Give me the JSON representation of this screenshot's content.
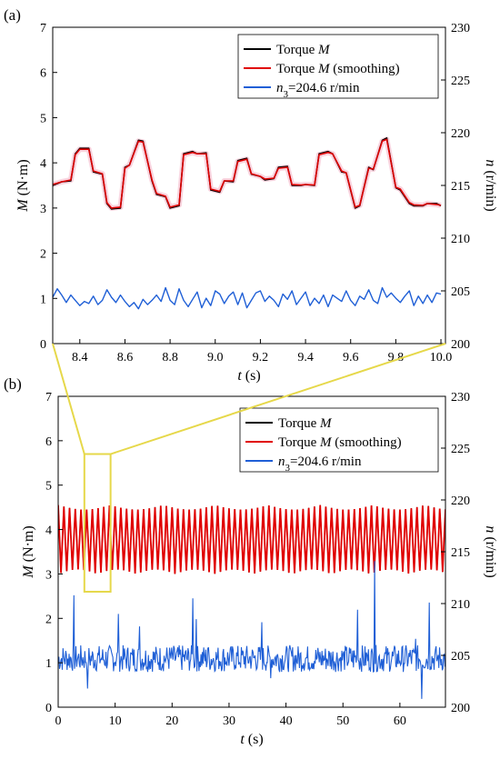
{
  "chart_data": [
    {
      "panel_label": "(a)",
      "type": "line",
      "xlabel_italic": "t",
      "xlabel_unit": "(s)",
      "ylabel_italic": "M",
      "ylabel_unit": "(N·m)",
      "y2label_italic": "n",
      "y2label_unit": "(r/min)",
      "xlim": [
        8.28,
        10.02
      ],
      "ylim": [
        0,
        7
      ],
      "y2lim": [
        200,
        230
      ],
      "x_ticks": [
        "8.4",
        "8.6",
        "8.8",
        "9.0",
        "9.2",
        "9.4",
        "9.6",
        "9.8",
        "10.0"
      ],
      "y_ticks": [
        "0",
        "1",
        "2",
        "3",
        "4",
        "5",
        "6",
        "7"
      ],
      "y2_ticks": [
        "200",
        "205",
        "210",
        "215",
        "220",
        "225",
        "230"
      ],
      "legend": {
        "placement": "top-right",
        "entries": [
          {
            "text": "Torque ",
            "italic": "M",
            "rest": "",
            "color": "#000000"
          },
          {
            "text": "Torque ",
            "italic": "M",
            "rest": " (smoothing)",
            "color": "#e00000"
          },
          {
            "text": "",
            "italic": "n",
            "sub": "3",
            "rest": "=204.6 r/min",
            "color": "#1f5fd6"
          }
        ]
      },
      "series": [
        {
          "name": "Torque M",
          "color": "#000000",
          "x": [
            8.28,
            8.32,
            8.36,
            8.38,
            8.4,
            8.44,
            8.46,
            8.5,
            8.52,
            8.54,
            8.58,
            8.6,
            8.62,
            8.66,
            8.68,
            8.72,
            8.74,
            8.78,
            8.8,
            8.84,
            8.86,
            8.9,
            8.92,
            8.96,
            8.98,
            9.02,
            9.04,
            9.08,
            9.1,
            9.14,
            9.16,
            9.2,
            9.22,
            9.26,
            9.28,
            9.32,
            9.34,
            9.38,
            9.4,
            9.44,
            9.46,
            9.5,
            9.52,
            9.56,
            9.58,
            9.62,
            9.64,
            9.68,
            9.7,
            9.74,
            9.76,
            9.8,
            9.82,
            9.86,
            9.88,
            9.92,
            9.94,
            9.98,
            10.0
          ],
          "y": [
            3.5,
            3.58,
            3.6,
            4.2,
            4.32,
            4.32,
            3.8,
            3.75,
            3.1,
            2.98,
            3.0,
            3.9,
            3.95,
            4.5,
            4.48,
            3.6,
            3.3,
            3.25,
            3.0,
            3.05,
            4.2,
            4.25,
            4.2,
            4.22,
            3.4,
            3.35,
            3.6,
            3.58,
            4.05,
            4.1,
            3.75,
            3.7,
            3.62,
            3.65,
            3.9,
            3.92,
            3.5,
            3.5,
            3.52,
            3.5,
            4.2,
            4.25,
            4.2,
            3.8,
            3.78,
            3.0,
            3.05,
            3.9,
            3.85,
            4.5,
            4.55,
            3.45,
            3.4,
            3.1,
            3.05,
            3.05,
            3.1,
            3.1,
            3.05
          ]
        },
        {
          "name": "Torque M (smoothing)",
          "color": "#e00000",
          "x": [
            8.28,
            8.32,
            8.36,
            8.38,
            8.4,
            8.44,
            8.46,
            8.5,
            8.52,
            8.54,
            8.58,
            8.6,
            8.62,
            8.66,
            8.68,
            8.72,
            8.74,
            8.78,
            8.8,
            8.84,
            8.86,
            8.9,
            8.92,
            8.96,
            8.98,
            9.02,
            9.04,
            9.08,
            9.1,
            9.14,
            9.16,
            9.2,
            9.22,
            9.26,
            9.28,
            9.32,
            9.34,
            9.38,
            9.4,
            9.44,
            9.46,
            9.5,
            9.52,
            9.56,
            9.58,
            9.62,
            9.64,
            9.68,
            9.7,
            9.74,
            9.76,
            9.8,
            9.82,
            9.86,
            9.88,
            9.92,
            9.94,
            9.98,
            10.0
          ],
          "y": [
            3.52,
            3.58,
            3.62,
            4.18,
            4.3,
            4.3,
            3.82,
            3.76,
            3.12,
            3.0,
            3.02,
            3.88,
            3.95,
            4.48,
            4.46,
            3.62,
            3.32,
            3.26,
            3.02,
            3.07,
            4.18,
            4.23,
            4.2,
            4.2,
            3.42,
            3.37,
            3.6,
            3.6,
            4.03,
            4.08,
            3.76,
            3.7,
            3.64,
            3.66,
            3.88,
            3.9,
            3.52,
            3.51,
            3.52,
            3.51,
            4.18,
            4.23,
            4.2,
            3.82,
            3.78,
            3.02,
            3.06,
            3.88,
            3.86,
            4.48,
            4.52,
            3.46,
            3.42,
            3.12,
            3.07,
            3.06,
            3.1,
            3.08,
            3.06
          ]
        },
        {
          "name": "n3=204.6 r/min",
          "axis": "right",
          "color": "#1f5fd6",
          "x": [
            8.28,
            8.3,
            8.32,
            8.34,
            8.36,
            8.38,
            8.4,
            8.42,
            8.44,
            8.46,
            8.48,
            8.5,
            8.52,
            8.54,
            8.56,
            8.58,
            8.6,
            8.62,
            8.64,
            8.66,
            8.68,
            8.7,
            8.72,
            8.74,
            8.76,
            8.78,
            8.8,
            8.82,
            8.84,
            8.86,
            8.88,
            8.9,
            8.92,
            8.94,
            8.96,
            8.98,
            9.0,
            9.02,
            9.04,
            9.06,
            9.08,
            9.1,
            9.12,
            9.14,
            9.16,
            9.18,
            9.2,
            9.22,
            9.24,
            9.26,
            9.28,
            9.3,
            9.32,
            9.34,
            9.36,
            9.38,
            9.4,
            9.42,
            9.44,
            9.46,
            9.48,
            9.5,
            9.52,
            9.54,
            9.56,
            9.58,
            9.6,
            9.62,
            9.64,
            9.66,
            9.68,
            9.7,
            9.72,
            9.74,
            9.76,
            9.78,
            9.8,
            9.82,
            9.84,
            9.86,
            9.88,
            9.9,
            9.92,
            9.94,
            9.96,
            9.98,
            10.0
          ],
          "y": [
            204.4,
            205.2,
            204.6,
            203.9,
            204.6,
            204.1,
            203.6,
            204.0,
            203.8,
            204.5,
            203.7,
            204.1,
            205.1,
            204.4,
            203.9,
            204.6,
            204.0,
            203.5,
            203.9,
            203.3,
            204.2,
            203.7,
            204.1,
            204.6,
            204.0,
            205.3,
            204.1,
            203.7,
            205.2,
            204.1,
            203.5,
            204.2,
            204.9,
            203.4,
            204.3,
            203.6,
            205.0,
            204.7,
            203.8,
            204.5,
            204.9,
            203.7,
            204.8,
            203.4,
            204.1,
            204.8,
            205.0,
            204.0,
            204.5,
            204.1,
            203.5,
            204.7,
            204.2,
            205.0,
            203.7,
            204.3,
            204.9,
            203.6,
            204.3,
            203.8,
            204.6,
            203.5,
            204.6,
            204.3,
            204.0,
            205.0,
            204.1,
            203.6,
            204.5,
            204.2,
            205.1,
            204.1,
            203.8,
            205.3,
            204.4,
            204.8,
            204.3,
            203.9,
            204.5,
            205.0,
            203.6,
            204.5,
            203.8,
            204.6,
            203.9,
            204.8,
            204.7
          ]
        }
      ]
    },
    {
      "panel_label": "(b)",
      "type": "line",
      "xlabel_italic": "t",
      "xlabel_unit": "(s)",
      "ylabel_italic": "M",
      "ylabel_unit": "(N·m)",
      "y2label_italic": "n",
      "y2label_unit": "(r/min)",
      "xlim": [
        0,
        68
      ],
      "ylim": [
        0,
        7
      ],
      "y2lim": [
        200,
        230
      ],
      "x_ticks": [
        "0",
        "10",
        "20",
        "30",
        "40",
        "50",
        "60"
      ],
      "y_ticks": [
        "0",
        "1",
        "2",
        "3",
        "4",
        "5",
        "6",
        "7"
      ],
      "y2_ticks": [
        "200",
        "205",
        "210",
        "215",
        "220",
        "225",
        "230"
      ],
      "torque_band": {
        "x_start": 0,
        "x_end": 68,
        "y_min": 3.0,
        "y_max": 4.55,
        "period_s": 1.0
      },
      "speed_band": {
        "x_start": 0,
        "x_end": 68,
        "y_min": 203.4,
        "y_max": 206.0
      },
      "speed_spikes": [
        {
          "x": 2.8,
          "y": 210.8
        },
        {
          "x": 5.2,
          "y": 201.8
        },
        {
          "x": 10.5,
          "y": 209.0
        },
        {
          "x": 14.3,
          "y": 207.8
        },
        {
          "x": 23.6,
          "y": 210.5
        },
        {
          "x": 24.3,
          "y": 208.5
        },
        {
          "x": 26.3,
          "y": 205.7
        },
        {
          "x": 35.8,
          "y": 208.2
        },
        {
          "x": 37.3,
          "y": 202.8
        },
        {
          "x": 52.6,
          "y": 209.4
        },
        {
          "x": 55.5,
          "y": 214.1
        },
        {
          "x": 62.8,
          "y": 206.6
        },
        {
          "x": 63.8,
          "y": 200.8
        },
        {
          "x": 65.2,
          "y": 210.1
        }
      ],
      "legend": {
        "placement": "top-right",
        "entries": [
          {
            "text": "Torque ",
            "italic": "M",
            "rest": "",
            "color": "#000000"
          },
          {
            "text": "Torque ",
            "italic": "M",
            "rest": " (smoothing)",
            "color": "#e00000"
          },
          {
            "text": "",
            "italic": "n",
            "sub": "3",
            "rest": "=204.6 r/min",
            "color": "#1f5fd6"
          }
        ]
      },
      "zoom_box": {
        "x": [
          4.6,
          9.2
        ],
        "y": [
          2.6,
          5.7
        ],
        "color": "#e6d84a"
      }
    }
  ]
}
